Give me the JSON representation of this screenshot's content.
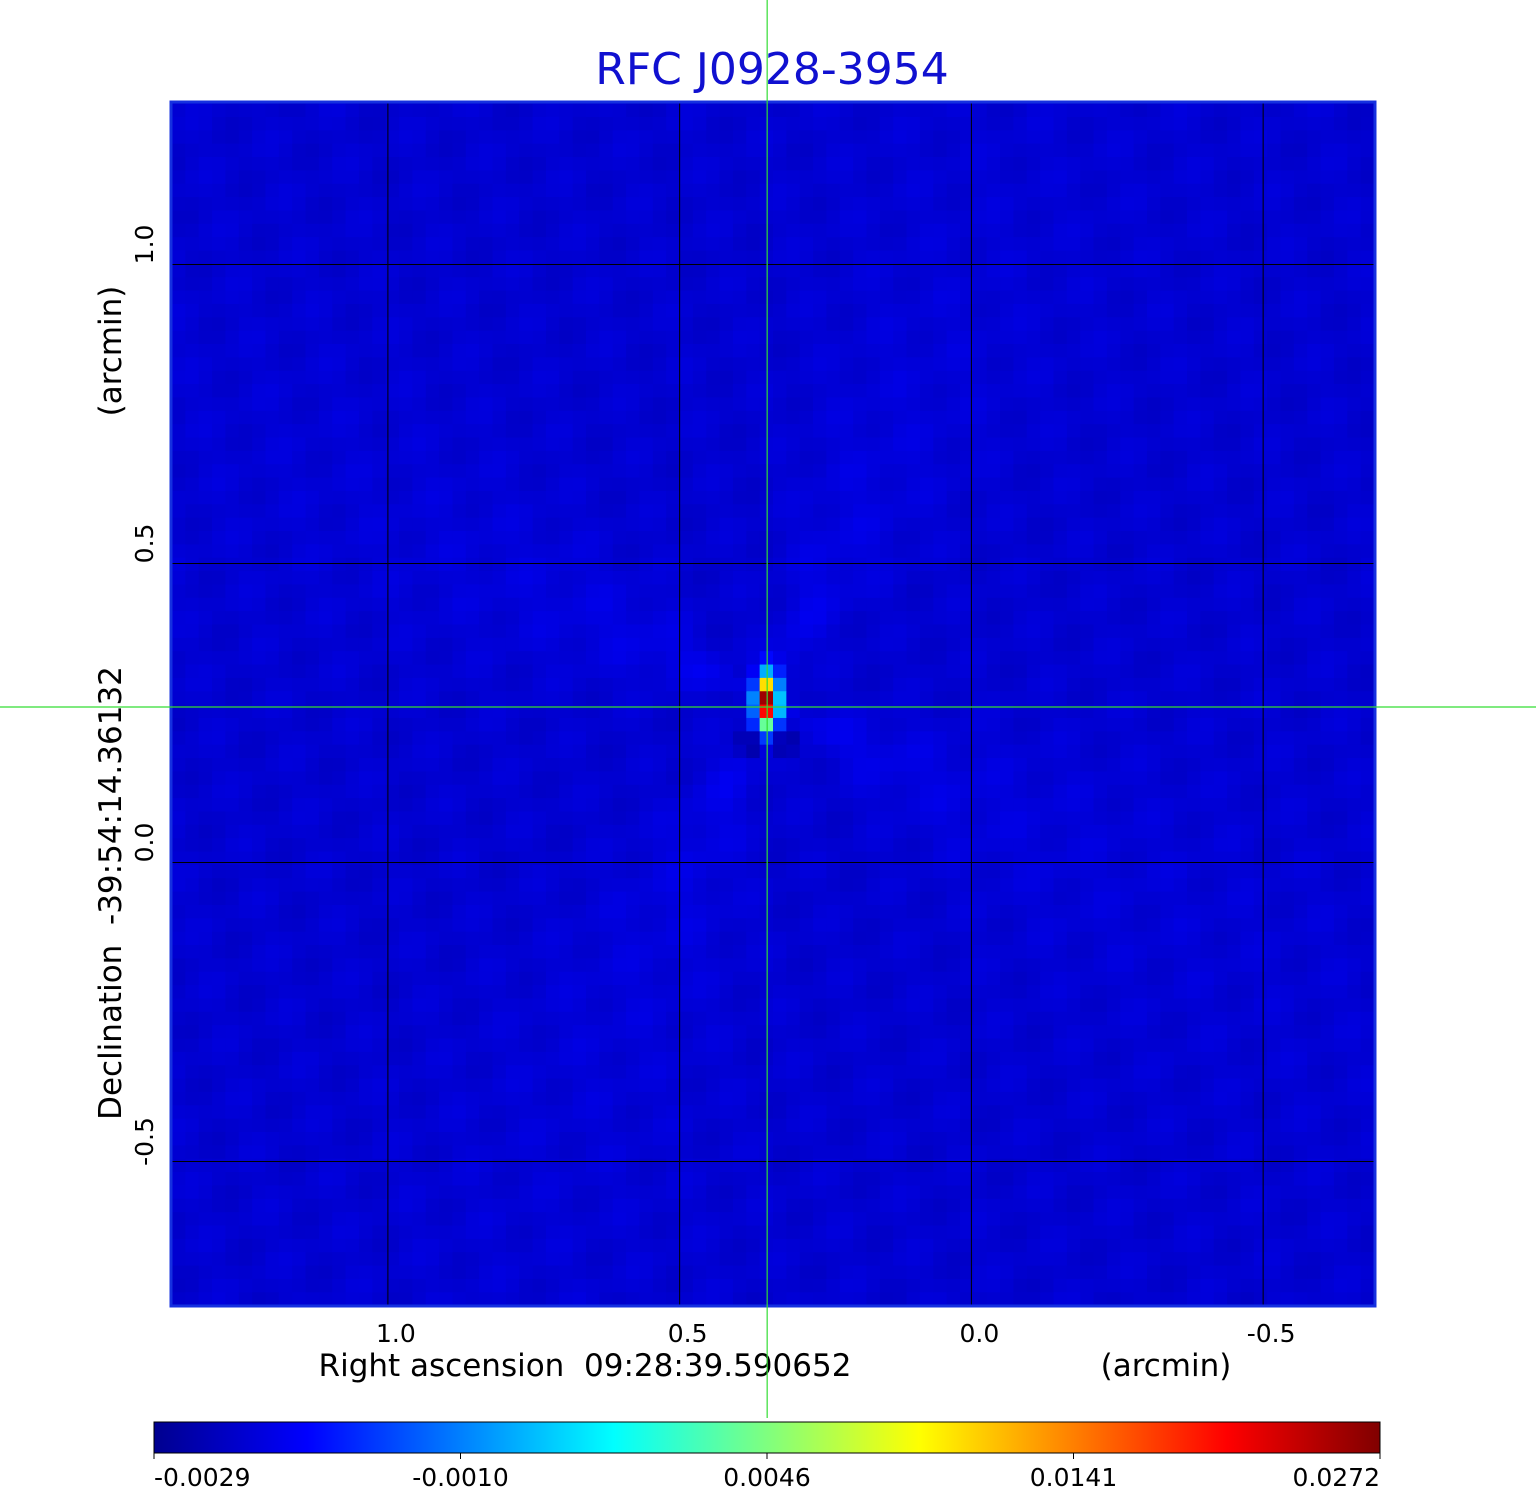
{
  "chart_data": {
    "type": "heatmap",
    "title": "RFC J0928-3954",
    "xlabel": "Right ascension  09:28:39.590652",
    "xunit": "(arcmin)",
    "ylabel": "Declination  -39:54:14.36132",
    "yunit": "(arcmin)",
    "x_ticks": [
      1.0,
      0.5,
      0.0,
      -0.5
    ],
    "x_tick_labels": [
      "1.0",
      "0.5",
      "0.0",
      "-0.5"
    ],
    "y_ticks": [
      1.0,
      0.5,
      0.0,
      -0.5
    ],
    "y_tick_labels": [
      "1.0",
      "0.5",
      "0.0",
      "-0.5"
    ],
    "xlim": [
      1.37,
      -0.69
    ],
    "ylim": [
      -0.74,
      1.27
    ],
    "grid": true,
    "crosshair": {
      "x": 0.35,
      "y": 0.26
    },
    "source_peak": {
      "x": 0.35,
      "y": 0.27,
      "value": 0.0272
    },
    "negative_lobes": [
      {
        "x": 0.38,
        "y": 0.2,
        "value": -0.0029
      },
      {
        "x": 0.32,
        "y": 0.2,
        "value": -0.0029
      }
    ],
    "background_level": -0.0005,
    "colorbar": {
      "min": -0.0029,
      "max": 0.0272,
      "ticks": [
        -0.0029,
        -0.001,
        0.0046,
        0.0141,
        0.0272
      ],
      "tick_labels": [
        "-0.0029",
        "-0.0010",
        "0.0046",
        "0.0141",
        "0.0272"
      ],
      "colormap": "jet"
    },
    "colors": {
      "title": "#1010d0",
      "frame": "#1530e0",
      "grid": "#000000",
      "crosshair": "#33dd33"
    }
  }
}
